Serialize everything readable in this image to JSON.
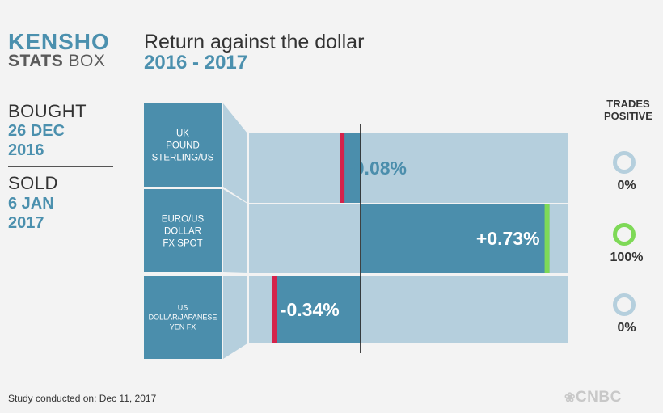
{
  "brand": {
    "logo_line1": "KENSHO",
    "logo_line2_bold": "STATS",
    "logo_line2_rest": " BOX"
  },
  "header": {
    "title": "Return against the dollar",
    "subtitle": "2016 - 2017"
  },
  "trade": {
    "bought_label": "BOUGHT",
    "bought_date_line1": "26 DEC",
    "bought_date_line2": "2016",
    "sold_label": "SOLD",
    "sold_date_line1": "6 JAN",
    "sold_date_line2": "2017"
  },
  "trades_positive": {
    "heading_line1": "TRADES",
    "heading_line2": "POSITIVE"
  },
  "footer": {
    "study_text": "Study conducted on: Dec 11, 2017",
    "network_logo": "CNBC"
  },
  "colors": {
    "bar_bg": "#b5cfdd",
    "bar_fill": "#4b8eac",
    "label_box": "#4b8eac",
    "negative_marker": "#d4234b",
    "positive_marker": "#7ed957",
    "ring_neutral": "#b5cfdd",
    "ring_positive": "#7ed957"
  },
  "chart_data": {
    "type": "bar",
    "orientation": "horizontal",
    "title": "Return against the dollar",
    "categories": [
      [
        "UK",
        "POUND",
        "STERLING/US"
      ],
      [
        "EURO/US",
        "DOLLAR",
        "FX SPOT"
      ],
      [
        "US",
        "DOLLAR/JAPANESE",
        "YEN FX"
      ]
    ],
    "values": [
      -0.08,
      0.73,
      -0.34
    ],
    "value_labels": [
      "-0.08%",
      "+0.73%",
      "-0.34%"
    ],
    "trades_positive": [
      0,
      100,
      0
    ],
    "trades_positive_labels": [
      "0%",
      "100%",
      "0%"
    ],
    "xlim": [
      -0.43,
      0.8
    ],
    "grid": false,
    "legend": "none"
  }
}
